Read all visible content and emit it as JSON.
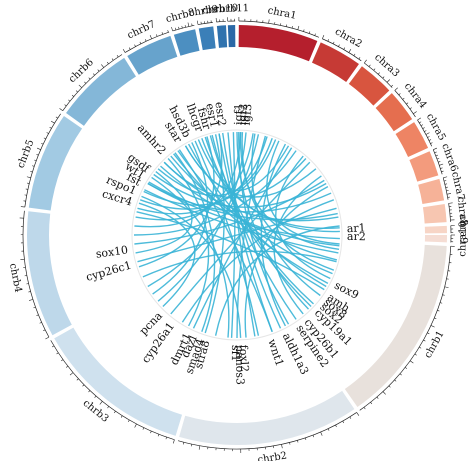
{
  "colors": {
    "background": "#ffffff",
    "link": "#3ab4d6",
    "inner_ring": "#e6e6e6",
    "tick": "#222222"
  },
  "chromosomes": [
    {
      "name": "chra1",
      "start": 0.5,
      "end": 22.5,
      "color": "#b51f2d"
    },
    {
      "name": "chra2",
      "start": 23.5,
      "end": 35.5,
      "color": "#c63a35"
    },
    {
      "name": "chra3",
      "start": 36.5,
      "end": 46.5,
      "color": "#d8553f"
    },
    {
      "name": "chra4",
      "start": 47.5,
      "end": 56.5,
      "color": "#e56e4f"
    },
    {
      "name": "chra5",
      "start": 57.5,
      "end": 65.5,
      "color": "#ee8464"
    },
    {
      "name": "chra6",
      "start": 66.5,
      "end": 73.5,
      "color": "#f39b7d"
    },
    {
      "name": "chra7",
      "start": 74.5,
      "end": 80.5,
      "color": "#f6b298"
    },
    {
      "name": "chra8",
      "start": 81.5,
      "end": 86.5,
      "color": "#f7c6b1"
    },
    {
      "name": "chra9",
      "start": 87.5,
      "end": 89.5,
      "color": "#f7d5c6"
    },
    {
      "name": "chra10",
      "start": 90.0,
      "end": 92.0,
      "color": "#f5ddd4"
    },
    {
      "name": "chrb1",
      "start": 93.0,
      "end": 145.0,
      "color": "#e8e1dc"
    },
    {
      "name": "chrb2",
      "start": 146.0,
      "end": 196.0,
      "color": "#dfe6ec"
    },
    {
      "name": "chrb3",
      "start": 197.0,
      "end": 240.5,
      "color": "#cfe1ee"
    },
    {
      "name": "chrb4",
      "start": 241.5,
      "end": 276.5,
      "color": "#bed8ea"
    },
    {
      "name": "chrb5",
      "start": 277.5,
      "end": 304.5,
      "color": "#a2cae3"
    },
    {
      "name": "chrb6",
      "start": 305.5,
      "end": 327.5,
      "color": "#84b7d8"
    },
    {
      "name": "chrb7",
      "start": 328.5,
      "end": 341.5,
      "color": "#67a3cc"
    },
    {
      "name": "chrb8",
      "start": 342.5,
      "end": 348.5,
      "color": "#4c8fc1"
    },
    {
      "name": "chrb9",
      "start": 349.5,
      "end": 353.5,
      "color": "#3b7fb8"
    },
    {
      "name": "chrb10",
      "start": 354.5,
      "end": 357.0,
      "color": "#2f72ae"
    },
    {
      "name": "chrb11",
      "start": 357.5,
      "end": 359.5,
      "color": "#2a68a6"
    }
  ],
  "genes": [
    {
      "name": "igf1",
      "angle": 1,
      "flip": false
    },
    {
      "name": "igf2",
      "angle": 3,
      "flip": false
    },
    {
      "name": "igf3",
      "angle": 5,
      "flip": false
    },
    {
      "name": "ar1",
      "angle": 87,
      "flip": false
    },
    {
      "name": "ar2",
      "angle": 91,
      "flip": false
    },
    {
      "name": "sox9",
      "angle": 117,
      "flip": false
    },
    {
      "name": "amh",
      "angle": 124,
      "flip": false
    },
    {
      "name": "sox8",
      "angle": 127,
      "flip": false
    },
    {
      "name": "sox2",
      "angle": 130,
      "flip": false
    },
    {
      "name": "cyp19a1",
      "angle": 134,
      "flip": false
    },
    {
      "name": "cyp26b1",
      "angle": 141,
      "flip": false
    },
    {
      "name": "serpine2",
      "angle": 146,
      "flip": false
    },
    {
      "name": "aldh1a3",
      "angle": 154,
      "flip": false
    },
    {
      "name": "wnt1",
      "angle": 162,
      "flip": false
    },
    {
      "name": "foxl2",
      "angle": 177,
      "flip": false
    },
    {
      "name": "nanos3",
      "angle": 179,
      "flip": false
    },
    {
      "name": "sf1",
      "angle": 181,
      "flip": false
    },
    {
      "name": "stra8",
      "angle": 196,
      "flip": true
    },
    {
      "name": "smad4",
      "angle": 199,
      "flip": true
    },
    {
      "name": "dazl",
      "angle": 203,
      "flip": true
    },
    {
      "name": "dmrt1",
      "angle": 206,
      "flip": true
    },
    {
      "name": "cyp26a1",
      "angle": 216,
      "flip": true
    },
    {
      "name": "pcna",
      "angle": 224,
      "flip": true
    },
    {
      "name": "cyp26c1",
      "angle": 254,
      "flip": true
    },
    {
      "name": "sox10",
      "angle": 262,
      "flip": true
    },
    {
      "name": "cxcr4",
      "angle": 287,
      "flip": true
    },
    {
      "name": "rspo1",
      "angle": 293,
      "flip": true
    },
    {
      "name": "fst",
      "angle": 298,
      "flip": true
    },
    {
      "name": "wt1",
      "angle": 302,
      "flip": true
    },
    {
      "name": "gsdf",
      "angle": 306,
      "flip": true
    },
    {
      "name": "amhr2",
      "angle": 318,
      "flip": true
    },
    {
      "name": "star",
      "angle": 328,
      "flip": true
    },
    {
      "name": "hsd3b",
      "angle": 333,
      "flip": true
    },
    {
      "name": "lhcgr",
      "angle": 340,
      "flip": true
    },
    {
      "name": "fshr",
      "angle": 344,
      "flip": true
    },
    {
      "name": "esr1",
      "angle": 348,
      "flip": true
    },
    {
      "name": "esr2",
      "angle": 352,
      "flip": true
    }
  ],
  "links": [
    [
      0,
      136
    ],
    [
      1,
      150
    ],
    [
      2,
      98
    ],
    [
      3,
      110
    ],
    [
      5,
      230
    ],
    [
      10,
      126
    ],
    [
      12,
      240
    ],
    [
      16,
      180
    ],
    [
      20,
      310
    ],
    [
      24,
      95
    ],
    [
      28,
      152
    ],
    [
      32,
      205
    ],
    [
      35,
      270
    ],
    [
      40,
      115
    ],
    [
      45,
      220
    ],
    [
      50,
      330
    ],
    [
      55,
      140
    ],
    [
      58,
      265
    ],
    [
      62,
      175
    ],
    [
      66,
      300
    ],
    [
      70,
      212
    ],
    [
      75,
      255
    ],
    [
      80,
      315
    ],
    [
      85,
      192
    ],
    [
      88,
      340
    ],
    [
      100,
      296
    ],
    [
      105,
      246
    ],
    [
      118,
      322
    ],
    [
      122,
      283
    ],
    [
      132,
      345
    ],
    [
      155,
      352
    ],
    [
      160,
      326
    ],
    [
      168,
      336
    ],
    [
      178,
      292
    ],
    [
      185,
      304
    ],
    [
      198,
      348
    ],
    [
      208,
      318
    ],
    [
      226,
      288
    ],
    [
      252,
      343
    ],
    [
      260,
      308
    ],
    [
      275,
      350
    ],
    [
      280,
      2
    ],
    [
      285,
      9
    ],
    [
      290,
      17
    ],
    [
      295,
      22
    ],
    [
      300,
      92
    ],
    [
      312,
      96
    ],
    [
      320,
      104
    ],
    [
      325,
      112
    ],
    [
      332,
      120
    ],
    [
      338,
      86
    ],
    [
      342,
      134
    ],
    [
      346,
      145
    ],
    [
      350,
      160
    ],
    [
      355,
      170
    ],
    [
      358,
      183
    ],
    [
      330,
      30
    ],
    [
      315,
      42
    ],
    [
      306,
      60
    ],
    [
      301,
      78
    ],
    [
      323,
      200
    ],
    [
      334,
      235
    ]
  ]
}
